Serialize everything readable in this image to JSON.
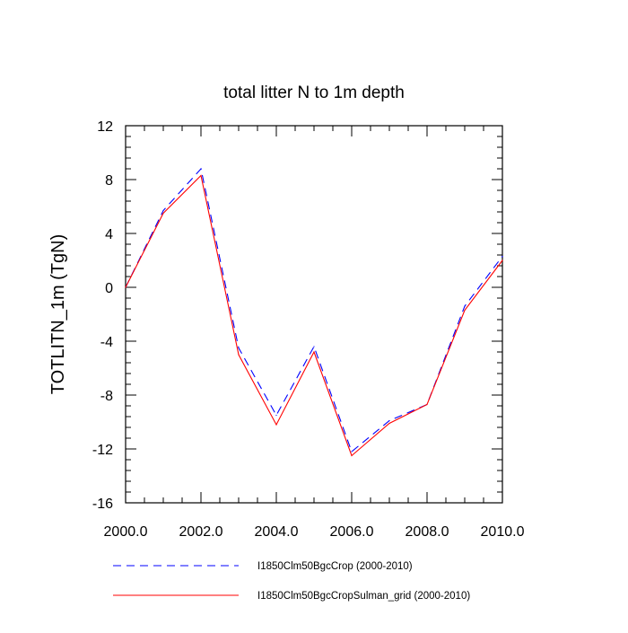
{
  "chart_data": {
    "type": "line",
    "title": "total litter N to 1m depth",
    "ylabel": "TOTLITN_1m  (TgN)",
    "xlabel": "",
    "xlim": [
      2000,
      2010
    ],
    "ylim": [
      -16,
      12
    ],
    "x_ticks": [
      2000,
      2002,
      2004,
      2006,
      2008,
      2010
    ],
    "x_tick_labels": [
      "2000.0",
      "2002.0",
      "2004.0",
      "2006.0",
      "2008.0",
      "2010.0"
    ],
    "y_ticks": [
      12,
      8,
      4,
      0,
      -4,
      -8,
      -12,
      -16
    ],
    "y_tick_labels": [
      "12",
      "8",
      "4",
      "0",
      "-4",
      "-8",
      "-12",
      "-16"
    ],
    "grid": false,
    "legend_position": "bottom",
    "x": [
      2000,
      2001,
      2002,
      2003,
      2004,
      2005,
      2006,
      2007,
      2008,
      2009,
      2010
    ],
    "series": [
      {
        "name": "I1850Clm50BgcCrop (2000-2010)",
        "color": "#0000ff",
        "style": "dashed",
        "values": [
          0.0,
          5.7,
          8.8,
          -4.5,
          -9.5,
          -4.4,
          -12.2,
          -9.9,
          -8.7,
          -1.4,
          2.3
        ]
      },
      {
        "name": "I1850Clm50BgcCropSulman_grid (2000-2010)",
        "color": "#ff0000",
        "style": "solid",
        "values": [
          0.0,
          5.5,
          8.3,
          -5.0,
          -10.2,
          -4.8,
          -12.5,
          -10.1,
          -8.7,
          -1.7,
          2.0
        ]
      }
    ]
  }
}
